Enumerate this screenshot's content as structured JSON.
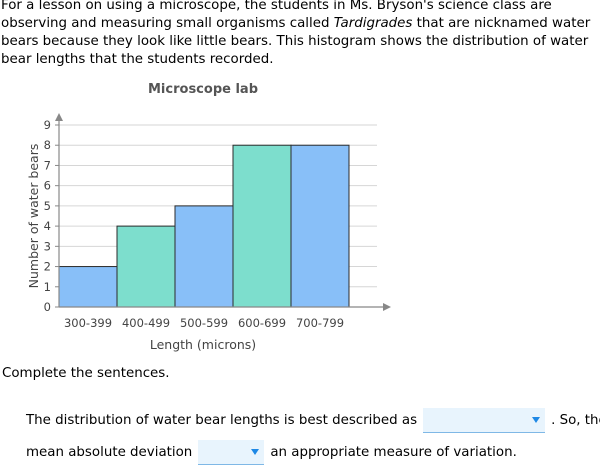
{
  "intro": {
    "part1": "For a lesson on using a microscope, the students in Ms. Bryson's science class are observing and measuring small organisms called ",
    "italic": "Tardigrades",
    "part2": " that are nicknamed water bears because they look like little bears. This histogram shows the distribution of water bear lengths that the students recorded."
  },
  "chart_data": {
    "type": "bar",
    "title": "Microscope lab",
    "categories": [
      "300-399",
      "400-499",
      "500-599",
      "600-699",
      "700-799"
    ],
    "values": [
      2,
      4,
      5,
      8,
      8
    ],
    "colors": [
      "#88bff8",
      "#7ddecd",
      "#88bff8",
      "#7ddecd",
      "#88bff8"
    ],
    "xlabel": "Length (microns)",
    "ylabel": "Number of water bears",
    "ylim": [
      0,
      9
    ],
    "yticks": [
      0,
      1,
      2,
      3,
      4,
      5,
      6,
      7,
      8,
      9
    ],
    "grid": true
  },
  "instruction": "Complete the sentences.",
  "sentence1": {
    "before": "The distribution of water bear lengths is best described as",
    "dropdown_value": "",
    "after": ". So, the"
  },
  "sentence2": {
    "before": "mean absolute deviation",
    "dropdown_value": "",
    "after": "an appropriate measure of variation."
  }
}
